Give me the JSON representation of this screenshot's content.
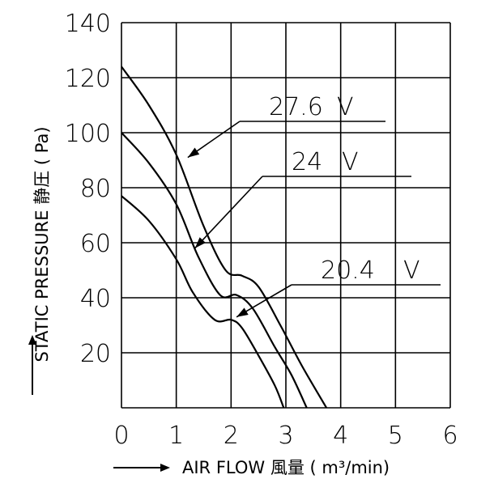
{
  "chart_data": {
    "type": "line",
    "xlabel": "AIR FLOW 風量 ( m³/min)",
    "ylabel": "STATIC PRESSURE 静圧 ( Pa)",
    "x_ticks": [
      "0",
      "1",
      "2",
      "3",
      "4",
      "5",
      "6"
    ],
    "y_ticks": [
      "20",
      "40",
      "60",
      "80",
      "100",
      "120",
      "140"
    ],
    "xlim": [
      0,
      6
    ],
    "ylim": [
      0,
      140
    ],
    "grid": true,
    "series": [
      {
        "name": "27.6 V",
        "x": [
          0,
          0.5,
          1.0,
          1.5,
          1.9,
          2.2,
          2.5,
          2.9,
          3.3,
          3.74
        ],
        "y": [
          124,
          110,
          92,
          66,
          50,
          48,
          44,
          30,
          15,
          0
        ]
      },
      {
        "name": "24 V",
        "x": [
          0,
          0.5,
          1.0,
          1.4,
          1.8,
          2.1,
          2.4,
          2.8,
          3.1,
          3.38
        ],
        "y": [
          100,
          89,
          74,
          55,
          41,
          41,
          36,
          22,
          12,
          0
        ]
      },
      {
        "name": "20.4 V",
        "x": [
          0,
          0.5,
          1.0,
          1.3,
          1.7,
          2.0,
          2.2,
          2.5,
          2.8,
          2.96
        ],
        "y": [
          77,
          68,
          54,
          42,
          32,
          32,
          29,
          19,
          8,
          0
        ]
      }
    ],
    "annotations": [
      {
        "label": "27.6",
        "unit": "V",
        "x": 1.21,
        "y": 91
      },
      {
        "label": "24",
        "unit": "V",
        "x": 1.34,
        "y": 58
      },
      {
        "label": "20.4",
        "unit": "V",
        "x": 2.1,
        "y": 33
      }
    ]
  }
}
